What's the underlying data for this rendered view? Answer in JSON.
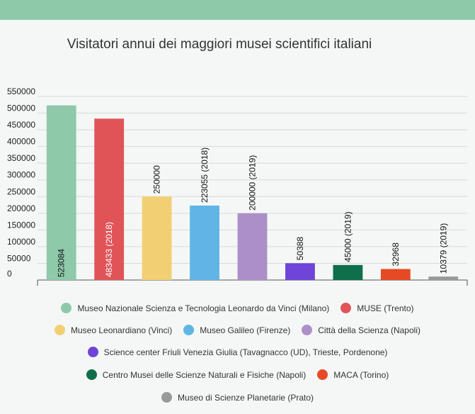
{
  "chart_data": {
    "type": "bar",
    "title": "Visitatori annui dei maggiori musei scientifici italiani",
    "ylim": [
      0,
      550000
    ],
    "ticks": [
      0,
      50000,
      100000,
      150000,
      200000,
      250000,
      300000,
      350000,
      400000,
      450000,
      500000,
      550000
    ],
    "grid": true,
    "legend_position": "bottom",
    "series": [
      {
        "name": "Museo Nazionale Scienza e Tecnologia Leonardo da Vinci (Milano)",
        "value": 523084,
        "label": "523084",
        "color": "#8ec9aa"
      },
      {
        "name": "MUSE (Trento)",
        "value": 483433,
        "label": "483433 (2018)",
        "color": "#e05458"
      },
      {
        "name": "Museo Leonardiano (Vinci)",
        "value": 250000,
        "label": "250000",
        "color": "#f2cf73"
      },
      {
        "name": "Museo Galileo (Firenze)",
        "value": 223055,
        "label": "223055 (2018)",
        "color": "#60b5e6"
      },
      {
        "name": "Città della Scienza (Napoli)",
        "value": 200000,
        "label": "200000 (2019)",
        "color": "#ac8fc9"
      },
      {
        "name": "Science center Friuli Venezia Giulia (Tavagnacco (UD), Trieste, Pordenone)",
        "value": 50388,
        "label": "50388",
        "color": "#6e44d9"
      },
      {
        "name": "Centro Musei delle Scienze Naturali e Fisiche (Napoli)",
        "value": 45000,
        "label": "45000 (2019)",
        "color": "#0f6e4b"
      },
      {
        "name": "MACA (Torino)",
        "value": 32968,
        "label": "32968",
        "color": "#e64a24"
      },
      {
        "name": "Museo di Scienze Planetarie (Prato)",
        "value": 10379,
        "label": "10379 (2019)",
        "color": "#999999"
      }
    ]
  }
}
